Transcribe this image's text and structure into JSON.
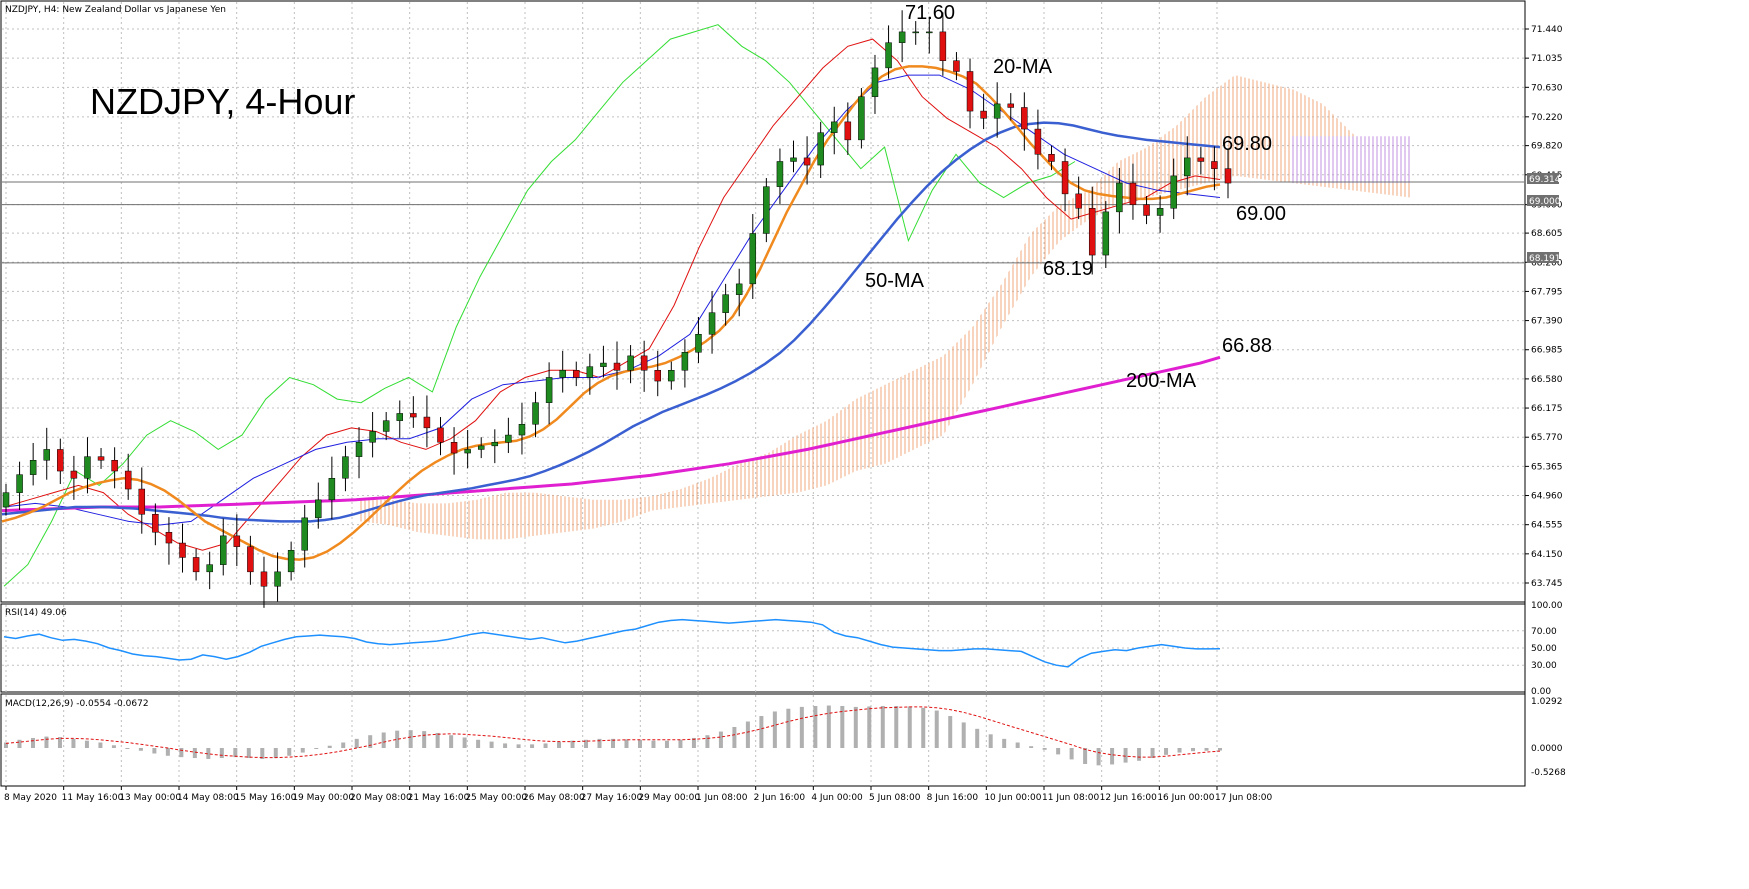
{
  "header": {
    "symbol_info": "NZDJPY, H4:  New Zealand Dollar vs Japanese Yen",
    "chart_title": "NZDJPY, 4-Hour",
    "rsi_label": "RSI(14) 49.06",
    "macd_label": "MACD(12,26,9) -0.0554 -0.0672"
  },
  "colors": {
    "bull_candle": "#1f8a1f",
    "bear_candle": "#e01010",
    "ma20": "#f08a1e",
    "ma50": "#3a5fd0",
    "ma200": "#e020d0",
    "tenkan": "#e01010",
    "kijun": "#2020e0",
    "chikou": "#33dd33",
    "cloud_bear": "#f0a070",
    "cloud_bull": "#c080e0",
    "rsi_line": "#1e90ff",
    "macd_hist": "#b0b0b0",
    "macd_signal": "#e01010",
    "grid": "#c0c0c0",
    "hline": "#707070"
  },
  "annotations": {
    "high": "71.60",
    "ma20": "20-MA",
    "ma50": "50-MA",
    "ma200": "200-MA",
    "ma50_value": "69.80",
    "support": "69.00",
    "low": "68.19",
    "ma200_value": "66.88"
  },
  "price_tags": {
    "current": "69.314",
    "support": "69.000",
    "low": "68.191"
  },
  "chart_data": [
    {
      "type": "candlestick",
      "title": "NZDJPY, H4",
      "y_ticks": [
        "71.440",
        "71.035",
        "70.630",
        "70.220",
        "69.820",
        "69.415",
        "69.000",
        "68.605",
        "68.200",
        "67.795",
        "67.390",
        "66.985",
        "66.580",
        "66.175",
        "65.770",
        "65.365",
        "64.960",
        "64.555",
        "64.150",
        "63.745"
      ],
      "ylim": [
        63.45,
        71.74
      ],
      "x_tick_labels": [
        "8 May 2020",
        "11 May 16:00",
        "13 May 00:00",
        "14 May 08:00",
        "15 May 16:00",
        "19 May 00:00",
        "20 May 08:00",
        "21 May 16:00",
        "25 May 00:00",
        "26 May 08:00",
        "27 May 16:00",
        "29 May 00:00",
        "1 Jun 08:00",
        "2 Jun 16:00",
        "4 Jun 00:00",
        "5 Jun 08:00",
        "8 Jun 16:00",
        "10 Jun 00:00",
        "11 Jun 08:00",
        "12 Jun 16:00",
        "16 Jun 00:00",
        "17 Jun 08:00"
      ],
      "close": [
        65.0,
        65.25,
        65.45,
        65.6,
        65.3,
        65.2,
        65.5,
        65.45,
        65.3,
        65.05,
        64.7,
        64.45,
        64.3,
        64.1,
        63.9,
        64.0,
        64.4,
        64.25,
        63.9,
        63.7,
        63.9,
        64.2,
        64.65,
        64.9,
        65.2,
        65.5,
        65.7,
        65.85,
        66.0,
        66.1,
        66.05,
        65.9,
        65.7,
        65.55,
        65.6,
        65.65,
        65.7,
        65.8,
        65.95,
        66.25,
        66.6,
        66.7,
        66.6,
        66.75,
        66.8,
        66.7,
        66.9,
        66.7,
        66.55,
        66.7,
        66.95,
        67.2,
        67.5,
        67.75,
        67.9,
        68.6,
        69.25,
        69.6,
        69.65,
        69.55,
        70.0,
        70.15,
        69.9,
        70.5,
        70.9,
        71.25,
        71.4,
        71.4,
        71.4,
        71.0,
        70.85,
        70.3,
        70.2,
        70.4,
        70.35,
        70.05,
        69.7,
        69.6,
        69.15,
        68.95,
        68.3,
        68.9,
        69.3,
        69.0,
        68.85,
        68.95,
        69.4,
        69.65,
        69.6,
        69.5,
        69.3
      ],
      "open_first": 64.8,
      "ma20": [
        64.6,
        64.65,
        64.72,
        64.8,
        64.9,
        65.0,
        65.07,
        65.13,
        65.17,
        65.2,
        65.18,
        65.12,
        65.03,
        64.9,
        64.75,
        64.6,
        64.5,
        64.4,
        64.3,
        64.2,
        64.12,
        64.08,
        64.07,
        64.1,
        64.18,
        64.3,
        64.45,
        64.62,
        64.8,
        64.98,
        65.15,
        65.3,
        65.42,
        65.52,
        65.6,
        65.65,
        65.68,
        65.7,
        65.72,
        65.78,
        65.88,
        66.02,
        66.2,
        66.38,
        66.52,
        66.62,
        66.68,
        66.72,
        66.75,
        66.8,
        66.88,
        66.98,
        67.1,
        67.25,
        67.45,
        67.75,
        68.1,
        68.5,
        68.9,
        69.25,
        69.6,
        69.9,
        70.15,
        70.4,
        70.62,
        70.78,
        70.88,
        70.92,
        70.92,
        70.9,
        70.85,
        70.78,
        70.68,
        70.5,
        70.3,
        70.08,
        69.85,
        69.65,
        69.45,
        69.3,
        69.2,
        69.15,
        69.12,
        69.1,
        69.08,
        69.08,
        69.1,
        69.15,
        69.2,
        69.25,
        69.28
      ],
      "ma50": [
        64.7,
        64.72,
        64.74,
        64.76,
        64.78,
        64.8,
        64.8,
        64.8,
        64.79,
        64.78,
        64.76,
        64.74,
        64.72,
        64.7,
        64.68,
        64.65,
        64.63,
        64.62,
        64.61,
        64.6,
        64.6,
        64.6,
        64.62,
        64.65,
        64.7,
        64.76,
        64.82,
        64.88,
        64.93,
        64.97,
        65.0,
        65.03,
        65.06,
        65.1,
        65.14,
        65.18,
        65.23,
        65.3,
        65.38,
        65.47,
        65.57,
        65.68,
        65.8,
        65.92,
        66.02,
        66.12,
        66.2,
        66.28,
        66.36,
        66.45,
        66.55,
        66.66,
        66.79,
        66.94,
        67.12,
        67.33,
        67.56,
        67.8,
        68.05,
        68.3,
        68.55,
        68.8,
        69.03,
        69.25,
        69.45,
        69.62,
        69.77,
        69.9,
        70.0,
        70.08,
        70.12,
        70.14,
        70.13,
        70.1,
        70.05,
        70.0,
        69.96,
        69.93,
        69.9,
        69.88,
        69.86,
        69.84,
        69.82,
        69.8
      ],
      "ma200": [
        64.75,
        64.76,
        64.77,
        64.78,
        64.79,
        64.8,
        64.8,
        64.8,
        64.8,
        64.81,
        64.82,
        64.83,
        64.84,
        64.85,
        64.86,
        64.87,
        64.88,
        64.89,
        64.9,
        64.92,
        64.94,
        64.96,
        64.98,
        65.0,
        65.02,
        65.04,
        65.06,
        65.08,
        65.1,
        65.12,
        65.15,
        65.18,
        65.21,
        65.24,
        65.28,
        65.32,
        65.36,
        65.4,
        65.45,
        65.5,
        65.55,
        65.6,
        65.66,
        65.72,
        65.78,
        65.84,
        65.9,
        65.96,
        66.02,
        66.08,
        66.14,
        66.2,
        66.26,
        66.32,
        66.38,
        66.44,
        66.5,
        66.56,
        66.62,
        66.68,
        66.74,
        66.8,
        66.88
      ],
      "series": [
        {
          "name": "20-MA",
          "last": 69.28
        },
        {
          "name": "50-MA",
          "last": 69.8
        },
        {
          "name": "200-MA",
          "last": 66.88
        }
      ],
      "levels": [
        69.314,
        69.0,
        68.191
      ]
    },
    {
      "type": "line",
      "title": "RSI(14) 49.06",
      "y_ticks": [
        "100.00",
        "70.00",
        "50.00",
        "30.00",
        "0.00"
      ],
      "ylim": [
        0,
        100
      ],
      "values": [
        63,
        61,
        64,
        66,
        62,
        59,
        60,
        58,
        55,
        50,
        47,
        43,
        41,
        40,
        38,
        36,
        37,
        42,
        40,
        37,
        40,
        45,
        52,
        56,
        60,
        63,
        64,
        65,
        64,
        63,
        61,
        57,
        55,
        54,
        55,
        56,
        57,
        58,
        60,
        63,
        66,
        68,
        66,
        64,
        62,
        60,
        62,
        59,
        56,
        58,
        61,
        64,
        67,
        70,
        72,
        76,
        80,
        82,
        83,
        82,
        81,
        80,
        79,
        80,
        81,
        82,
        83,
        82,
        81,
        80,
        77,
        68,
        64,
        62,
        58,
        54,
        51,
        50,
        49,
        48,
        47,
        47,
        48,
        49,
        49,
        48,
        47,
        46,
        40,
        34,
        30,
        28,
        38,
        44,
        46,
        48,
        47,
        50,
        52,
        54,
        52,
        50,
        49,
        49,
        49.06
      ]
    },
    {
      "type": "bar",
      "title": "MACD(12,26,9) -0.0554 -0.0672",
      "y_ticks": [
        "1.0292",
        "0.0000",
        "-0.5268"
      ],
      "ylim": [
        -0.6,
        1.1
      ],
      "histogram": [
        0.12,
        0.18,
        0.22,
        0.25,
        0.24,
        0.2,
        0.16,
        0.12,
        0.06,
        0.0,
        -0.06,
        -0.12,
        -0.17,
        -0.2,
        -0.22,
        -0.24,
        -0.22,
        -0.2,
        -0.22,
        -0.24,
        -0.22,
        -0.17,
        -0.1,
        -0.02,
        0.05,
        0.12,
        0.2,
        0.28,
        0.34,
        0.38,
        0.39,
        0.37,
        0.33,
        0.28,
        0.23,
        0.18,
        0.14,
        0.1,
        0.08,
        0.08,
        0.1,
        0.13,
        0.16,
        0.18,
        0.2,
        0.2,
        0.19,
        0.18,
        0.16,
        0.16,
        0.18,
        0.22,
        0.28,
        0.36,
        0.46,
        0.58,
        0.7,
        0.8,
        0.86,
        0.9,
        0.92,
        0.93,
        0.92,
        0.9,
        0.91,
        0.92,
        0.92,
        0.91,
        0.88,
        0.82,
        0.7,
        0.56,
        0.42,
        0.3,
        0.2,
        0.12,
        0.04,
        -0.04,
        -0.14,
        -0.25,
        -0.35,
        -0.38,
        -0.36,
        -0.32,
        -0.28,
        -0.22,
        -0.15,
        -0.1,
        -0.07,
        -0.06,
        -0.055
      ],
      "signal": [
        0.1,
        0.13,
        0.16,
        0.19,
        0.21,
        0.21,
        0.2,
        0.18,
        0.15,
        0.12,
        0.08,
        0.04,
        0.0,
        -0.05,
        -0.09,
        -0.13,
        -0.16,
        -0.18,
        -0.2,
        -0.21,
        -0.21,
        -0.2,
        -0.18,
        -0.15,
        -0.11,
        -0.06,
        0.0,
        0.06,
        0.13,
        0.19,
        0.24,
        0.28,
        0.3,
        0.31,
        0.3,
        0.28,
        0.26,
        0.23,
        0.2,
        0.17,
        0.15,
        0.14,
        0.14,
        0.15,
        0.16,
        0.17,
        0.18,
        0.18,
        0.18,
        0.18,
        0.18,
        0.19,
        0.21,
        0.24,
        0.29,
        0.35,
        0.42,
        0.5,
        0.58,
        0.65,
        0.71,
        0.76,
        0.8,
        0.83,
        0.86,
        0.88,
        0.89,
        0.9,
        0.9,
        0.88,
        0.84,
        0.78,
        0.7,
        0.61,
        0.52,
        0.43,
        0.34,
        0.25,
        0.16,
        0.07,
        -0.03,
        -0.1,
        -0.15,
        -0.18,
        -0.2,
        -0.2,
        -0.18,
        -0.15,
        -0.12,
        -0.09,
        -0.0672
      ]
    }
  ]
}
